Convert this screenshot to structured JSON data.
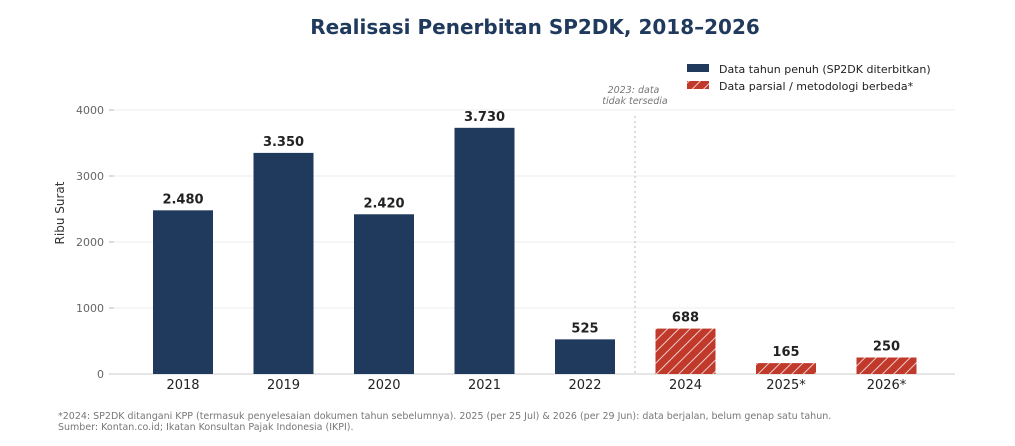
{
  "chart_data": {
    "type": "bar",
    "title": "Realisasi Penerbitan SP2DK, 2018–2026",
    "ylabel": "Ribu Surat",
    "xlabel": "",
    "ylim": [
      0,
      4000
    ],
    "yticks": [
      "0",
      "1000",
      "2000",
      "3000",
      "4000"
    ],
    "grid": "horizontal",
    "legend_position": "top-right",
    "categories": [
      "2018",
      "2019",
      "2020",
      "2021",
      "2022",
      "2024",
      "2025*",
      "2026*"
    ],
    "values": [
      2480,
      3350,
      2420,
      3730,
      525,
      688,
      165,
      250
    ],
    "value_labels": [
      "2.480",
      "3.350",
      "2.420",
      "3.730",
      "525",
      "688",
      "165",
      "250"
    ],
    "kinds": [
      "full",
      "full",
      "full",
      "full",
      "full",
      "partial",
      "partial",
      "partial"
    ],
    "legend": [
      {
        "key": "full",
        "label": "Data tahun penuh (SP2DK diterbitkan)",
        "color": "#1f3a5c"
      },
      {
        "key": "partial",
        "label": "Data parsial / metodologi berbeda*",
        "color": "#c0392b"
      }
    ],
    "gap_note": [
      "2023: data",
      "tidak tersedia"
    ],
    "footnotes": [
      "*2024: SP2DK ditangani KPP (termasuk penyelesaian dokumen tahun sebelumnya). 2025 (per 25 Jul) & 2026 (per 29 Jun): data berjalan, belum genap satu tahun.",
      "Sumber: Kontan.co.id; Ikatan Konsultan Pajak Indonesia (IKPI)."
    ]
  }
}
